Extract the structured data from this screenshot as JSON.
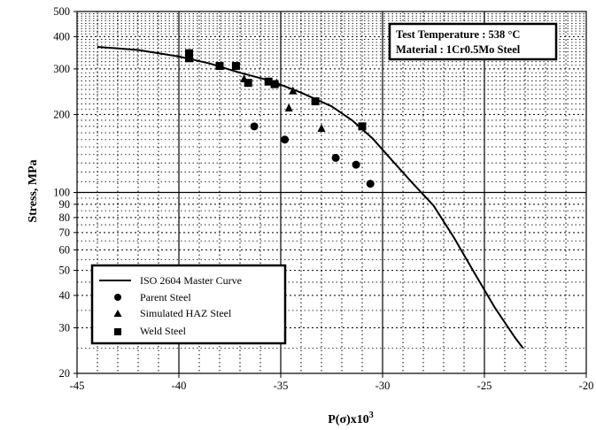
{
  "chart_data": {
    "type": "scatter",
    "title": "",
    "xlabel_main": "P(σ)x10",
    "xlabel_sup": "3",
    "ylabel": "Stress, MPa",
    "x_scale": "linear",
    "y_scale": "log",
    "xlim": [
      -45,
      -20
    ],
    "ylim": [
      20,
      500
    ],
    "x_ticks": [
      -45,
      -40,
      -35,
      -30,
      -25,
      -20
    ],
    "x_tick_labels": [
      "-45",
      "-40",
      "-35",
      "-30",
      "-25",
      "-20"
    ],
    "y_ticks": [
      20,
      30,
      40,
      50,
      60,
      70,
      80,
      90,
      100,
      200,
      300,
      400,
      500
    ],
    "y_tick_labels": [
      "20",
      "30",
      "40",
      "50",
      "60",
      "70",
      "80",
      "90",
      "100",
      "200",
      "300",
      "400",
      "500"
    ],
    "grid": "major solid, minor dotted",
    "legend_position": "bottom-left",
    "annotation": {
      "line1": "Test Temperature : 538 °C",
      "line2": "Material : 1Cr0.5Mo Steel",
      "position": "top-right"
    },
    "series": [
      {
        "name": "ISO 2604 Master Curve",
        "kind": "line",
        "x": [
          -44,
          -42,
          -40,
          -38.5,
          -37,
          -35.5,
          -34,
          -32.5,
          -31.5,
          -30.5,
          -29.5,
          -28.5,
          -27.5,
          -26.5,
          -25.5,
          -24.5,
          -23.5,
          -23.1
        ],
        "y": [
          365,
          355,
          335,
          315,
          290,
          270,
          243,
          215,
          190,
          162,
          132,
          108,
          89,
          67,
          49,
          36,
          27.5,
          25
        ]
      },
      {
        "name": "Parent Steel",
        "kind": "scatter",
        "marker": "circle",
        "x": [
          -36.3,
          -34.8,
          -32.3,
          -31.3,
          -30.6
        ],
        "y": [
          180,
          160,
          136,
          128,
          108
        ]
      },
      {
        "name": "Simulated HAZ Steel",
        "kind": "scatter",
        "marker": "triangle",
        "x": [
          -34.6,
          -34.4,
          -33,
          -36.8,
          -35.2
        ],
        "y": [
          212,
          247,
          177,
          275,
          265
        ]
      },
      {
        "name": "Weld Steel",
        "kind": "scatter",
        "marker": "square",
        "x": [
          -39.5,
          -39.5,
          -38,
          -37.2,
          -36.6,
          -35.6,
          -35.3,
          -33.3,
          -31
        ],
        "y": [
          345,
          330,
          308,
          308,
          265,
          268,
          262,
          225,
          180
        ]
      }
    ]
  }
}
